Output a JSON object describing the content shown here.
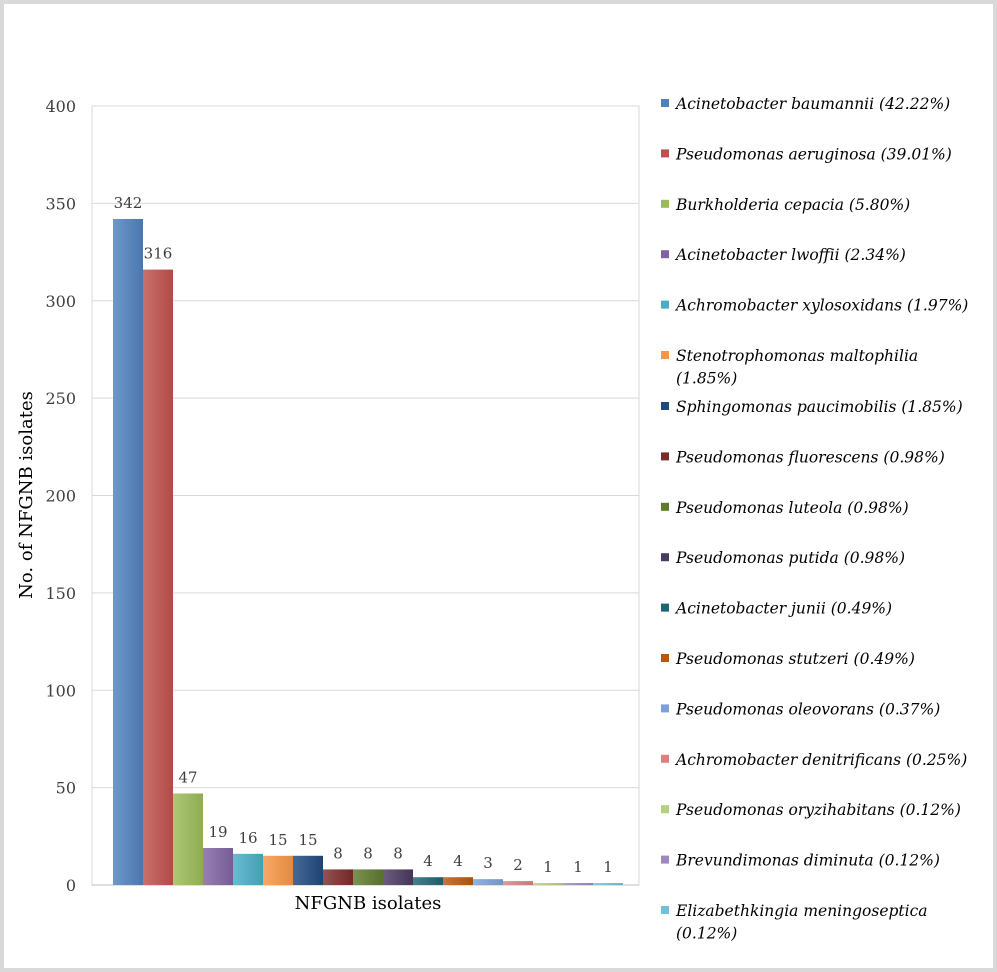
{
  "chart_data": {
    "type": "bar",
    "title": "",
    "xlabel": "NFGNB isolates",
    "ylabel": "No. of NFGNB isolates",
    "ylim": [
      0,
      400
    ],
    "yticks": [
      0,
      50,
      100,
      150,
      200,
      250,
      300,
      350,
      400
    ],
    "grid": true,
    "legend_position": "right",
    "series": [
      {
        "name": "Acinetobacter baumannii (42.22%)",
        "value": 342,
        "label": "342",
        "color": "#4f81bd"
      },
      {
        "name": "Pseudomonas aeruginosa (39.01%)",
        "value": 316,
        "label": "316",
        "color": "#c0504d"
      },
      {
        "name": "Burkholderia cepacia (5.80%)",
        "value": 47,
        "label": "47",
        "color": "#9bbb59"
      },
      {
        "name": "Acinetobacter lwoffii (2.34%)",
        "value": 19,
        "label": "19",
        "color": "#8064a2"
      },
      {
        "name": "Achromobacter xylosoxidans (1.97%)",
        "value": 16,
        "label": "16",
        "color": "#4bacc6"
      },
      {
        "name": "Stenotrophomonas maltophilia (1.85%)",
        "value": 15,
        "label": "15",
        "color": "#f79646"
      },
      {
        "name": "Sphingomonas paucimobilis (1.85%)",
        "value": 15,
        "label": "15",
        "color": "#1f497d"
      },
      {
        "name": "Pseudomonas fluorescens (0.98%)",
        "value": 8,
        "label": "8",
        "color": "#7b2c2a"
      },
      {
        "name": "Pseudomonas luteola (0.98%)",
        "value": 8,
        "label": "8",
        "color": "#5f7a2e"
      },
      {
        "name": "Pseudomonas putida (0.98%)",
        "value": 8,
        "label": "8",
        "color": "#4a3a60"
      },
      {
        "name": "Acinetobacter junii (0.49%)",
        "value": 4,
        "label": "4",
        "color": "#206373"
      },
      {
        "name": "Pseudomonas stutzeri (0.49%)",
        "value": 4,
        "label": "4",
        "color": "#b8580f"
      },
      {
        "name": "Pseudomonas oleovorans (0.37%)",
        "value": 3,
        "label": "3",
        "color": "#7da1d6"
      },
      {
        "name": "Achromobacter denitrificans (0.25%)",
        "value": 2,
        "label": "2",
        "color": "#d98280"
      },
      {
        "name": "Pseudomonas oryzihabitans (0.12%)",
        "value": 1,
        "label": "1",
        "color": "#b5d07e"
      },
      {
        "name": "Brevundimonas diminuta (0.12%)",
        "value": 1,
        "label": "1",
        "color": "#9d87bd"
      },
      {
        "name": "Elizabethkingia meningoseptica (0.12%)",
        "value": 1,
        "label": "1",
        "color": "#71c1d6"
      }
    ]
  }
}
